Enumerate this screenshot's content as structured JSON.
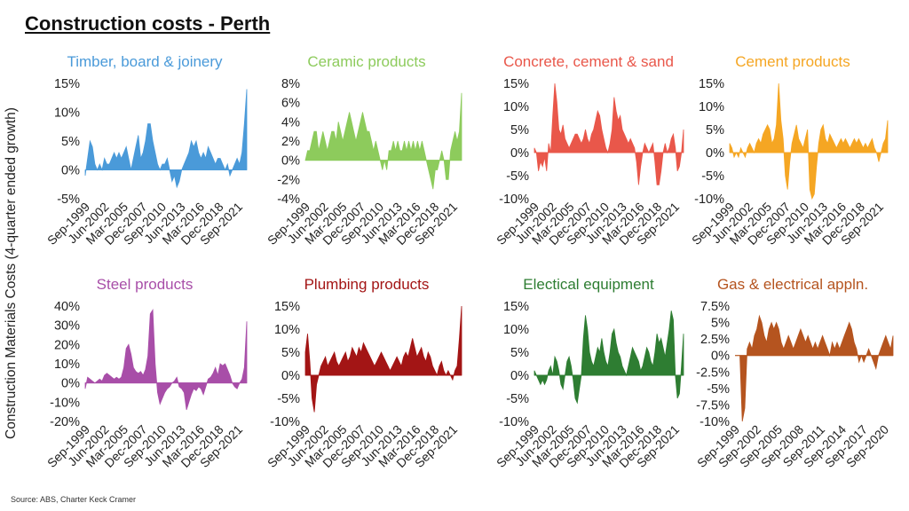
{
  "title": "Construction costs - Perth",
  "y_axis_title": "Construction Materials Costs (4-quarter ended growth)",
  "source": "Source: ABS, Charter Keck Cramer",
  "chart_data": [
    {
      "type": "area",
      "title": "Timber, board & joinery",
      "color": "#4a9ad9",
      "ylim": [
        -5,
        15
      ],
      "yticks": [
        15,
        10,
        5,
        0,
        -5
      ],
      "ytick_labels": [
        "15%",
        "10%",
        "5%",
        "0%",
        "-5%"
      ],
      "xlim": [
        1999.67,
        2022.0
      ],
      "xtick_labels": [
        "Sep-1999",
        "Jun-2002",
        "Mar-2005",
        "Dec-2007",
        "Sep-2010",
        "Jun-2013",
        "Mar-2016",
        "Dec-2018",
        "Sep-2021"
      ],
      "values": [
        -1,
        2,
        5,
        4,
        1,
        0,
        1,
        0,
        2,
        1,
        1,
        2,
        3,
        2,
        3,
        2,
        3,
        4,
        2,
        0,
        2,
        4,
        6,
        2,
        3,
        5,
        8,
        8,
        5,
        3,
        1,
        0,
        1,
        1,
        2,
        0,
        -2,
        -1,
        -3,
        -2,
        0,
        1,
        2,
        3,
        5,
        4,
        5,
        3,
        2,
        3,
        2,
        4,
        3,
        2,
        1,
        2,
        2,
        1,
        0,
        1,
        -1,
        0,
        1,
        2,
        1,
        3,
        8,
        14
      ]
    },
    {
      "type": "area",
      "title": "Ceramic products",
      "color": "#8dcb5c",
      "ylim": [
        -4,
        8
      ],
      "yticks": [
        8,
        6,
        4,
        2,
        0,
        -2,
        -4
      ],
      "ytick_labels": [
        "8%",
        "6%",
        "4%",
        "2%",
        "0%",
        "-2%",
        "-4%"
      ],
      "xlim": [
        1999.67,
        2022.0
      ],
      "xtick_labels": [
        "Sep-1999",
        "Jun-2002",
        "Mar-2005",
        "Dec-2007",
        "Sep-2010",
        "Jun-2013",
        "Mar-2016",
        "Dec-2018",
        "Sep-2021"
      ],
      "values": [
        0,
        1,
        1,
        2,
        3,
        3,
        1,
        2,
        3,
        2,
        1,
        2,
        3,
        3,
        2,
        4,
        3,
        2,
        3,
        4,
        5,
        4,
        3,
        2,
        3,
        4,
        5,
        4,
        3,
        3,
        2,
        1,
        2,
        1,
        0,
        -1,
        0,
        -1,
        1,
        1,
        2,
        1,
        2,
        1,
        1,
        2,
        1,
        2,
        1,
        2,
        1,
        2,
        1,
        2,
        1,
        0,
        -1,
        -2,
        -3,
        -1,
        -1,
        0,
        1,
        0,
        -2,
        -2,
        1,
        2,
        3,
        2,
        3,
        7
      ]
    },
    {
      "type": "area",
      "title": "Concrete, cement & sand",
      "color": "#e9574a",
      "ylim": [
        -10,
        15
      ],
      "yticks": [
        15,
        10,
        5,
        0,
        -5,
        -10
      ],
      "ytick_labels": [
        "15%",
        "10%",
        "5%",
        "0%",
        "-5%",
        "-10%"
      ],
      "xlim": [
        1999.67,
        2022.0
      ],
      "xtick_labels": [
        "Sep-1999",
        "Jun-2002",
        "Mar-2005",
        "Dec-2007",
        "Sep-2010",
        "Jun-2013",
        "Mar-2016",
        "Dec-2018",
        "Sep-2021"
      ],
      "values": [
        1,
        0,
        -4,
        -2,
        -3,
        -1,
        -4,
        2,
        0,
        8,
        15,
        11,
        5,
        4,
        6,
        3,
        2,
        1,
        2,
        3,
        4,
        4,
        3,
        2,
        3,
        5,
        3,
        2,
        4,
        5,
        7,
        9,
        8,
        5,
        3,
        1,
        0,
        2,
        5,
        12,
        9,
        7,
        8,
        5,
        4,
        3,
        2,
        3,
        2,
        1,
        -2,
        -7,
        -3,
        0,
        2,
        1,
        0,
        1,
        2,
        -2,
        -7,
        -7,
        -4,
        0,
        2,
        0,
        1,
        3,
        4,
        1,
        -4,
        -3,
        0,
        5
      ]
    },
    {
      "type": "area",
      "title": "Cement products",
      "color": "#f5a623",
      "ylim": [
        -10,
        15
      ],
      "yticks": [
        15,
        10,
        5,
        0,
        -5,
        -10
      ],
      "ytick_labels": [
        "15%",
        "10%",
        "5%",
        "0%",
        "-5%",
        "-10%"
      ],
      "xlim": [
        1999.67,
        2022.0
      ],
      "xtick_labels": [
        "Sep-1999",
        "Jun-2002",
        "Mar-2005",
        "Dec-2007",
        "Sep-2010",
        "Jun-2013",
        "Mar-2016",
        "Dec-2018",
        "Sep-2021"
      ],
      "values": [
        2,
        1,
        -1,
        0,
        -1,
        1,
        0,
        -1,
        1,
        2,
        1,
        0,
        2,
        3,
        2,
        4,
        5,
        6,
        5,
        2,
        3,
        6,
        15,
        7,
        3,
        -5,
        -8,
        -2,
        2,
        4,
        6,
        3,
        2,
        1,
        3,
        5,
        -8,
        -10,
        -9,
        -3,
        2,
        5,
        6,
        3,
        2,
        4,
        3,
        2,
        1,
        2,
        3,
        2,
        3,
        2,
        1,
        2,
        3,
        2,
        3,
        2,
        1,
        2,
        1,
        2,
        3,
        1,
        0,
        -2,
        0,
        2,
        3,
        7
      ]
    },
    {
      "type": "area",
      "title": "Steel products",
      "color": "#a84ea8",
      "ylim": [
        -20,
        40
      ],
      "yticks": [
        40,
        30,
        20,
        10,
        0,
        -10,
        -20
      ],
      "ytick_labels": [
        "40%",
        "30%",
        "20%",
        "10%",
        "0%",
        "-10%",
        "-20%"
      ],
      "xlim": [
        1999.67,
        2022.0
      ],
      "xtick_labels": [
        "Sep-1999",
        "Jun-2002",
        "Mar-2005",
        "Dec-2007",
        "Sep-2010",
        "Jun-2013",
        "Mar-2016",
        "Dec-2018",
        "Sep-2021"
      ],
      "values": [
        -3,
        3,
        2,
        1,
        0,
        1,
        2,
        1,
        4,
        5,
        4,
        3,
        2,
        3,
        2,
        3,
        8,
        18,
        20,
        15,
        8,
        6,
        5,
        6,
        4,
        7,
        14,
        36,
        38,
        10,
        -5,
        -11,
        -8,
        -5,
        -3,
        -2,
        0,
        1,
        3,
        -2,
        -3,
        -5,
        -14,
        -10,
        -6,
        -3,
        -4,
        -2,
        -3,
        -6,
        -2,
        2,
        3,
        5,
        8,
        4,
        10,
        9,
        10,
        7,
        4,
        0,
        -2,
        -3,
        0,
        2,
        8,
        32
      ]
    },
    {
      "type": "area",
      "title": "Plumbing products",
      "color": "#a31515",
      "ylim": [
        -10,
        15
      ],
      "yticks": [
        15,
        10,
        5,
        0,
        -5,
        -10
      ],
      "ytick_labels": [
        "15%",
        "10%",
        "5%",
        "0%",
        "-5%",
        "-10%"
      ],
      "xlim": [
        1999.67,
        2022.0
      ],
      "xtick_labels": [
        "Sep-1999",
        "Jun-2002",
        "Mar-2005",
        "Dec-2007",
        "Sep-2010",
        "Jun-2013",
        "Mar-2016",
        "Dec-2018",
        "Sep-2021"
      ],
      "values": [
        5,
        9,
        3,
        -5,
        -8,
        -2,
        0,
        2,
        3,
        4,
        2,
        3,
        4,
        5,
        3,
        2,
        3,
        4,
        5,
        3,
        4,
        6,
        5,
        4,
        6,
        5,
        7,
        6,
        5,
        4,
        3,
        2,
        3,
        4,
        5,
        4,
        3,
        2,
        1,
        2,
        3,
        4,
        3,
        2,
        4,
        5,
        4,
        6,
        8,
        6,
        4,
        5,
        6,
        4,
        3,
        5,
        4,
        2,
        1,
        0,
        2,
        3,
        1,
        0,
        1,
        0,
        -1,
        1,
        2,
        8,
        15
      ]
    },
    {
      "type": "area",
      "title": "Electical equipment",
      "color": "#2e7d32",
      "ylim": [
        -10,
        15
      ],
      "yticks": [
        15,
        10,
        5,
        0,
        -5,
        -10
      ],
      "ytick_labels": [
        "15%",
        "10%",
        "5%",
        "0%",
        "-5%",
        "-10%"
      ],
      "xlim": [
        1999.67,
        2022.0
      ],
      "xtick_labels": [
        "Sep-1999",
        "Jun-2002",
        "Mar-2005",
        "Dec-2007",
        "Sep-2010",
        "Jun-2013",
        "Mar-2016",
        "Dec-2018",
        "Sep-2021"
      ],
      "values": [
        1,
        0,
        -1,
        -2,
        -1,
        -2,
        -1,
        1,
        2,
        0,
        4,
        3,
        1,
        -2,
        -3,
        0,
        3,
        4,
        2,
        -1,
        -5,
        -6,
        -3,
        0,
        8,
        13,
        10,
        5,
        3,
        2,
        4,
        6,
        5,
        8,
        5,
        3,
        2,
        5,
        9,
        10,
        7,
        5,
        4,
        2,
        1,
        0,
        2,
        4,
        6,
        5,
        4,
        3,
        1,
        2,
        4,
        6,
        5,
        3,
        2,
        5,
        9,
        7,
        8,
        6,
        4,
        7,
        10,
        14,
        12,
        0,
        -5,
        -4,
        2,
        9
      ]
    },
    {
      "type": "area",
      "title": "Gas & electrical appln.",
      "color": "#b5541f",
      "ylim": [
        -10,
        7.5
      ],
      "yticks": [
        7.5,
        5,
        2.5,
        0,
        -2.5,
        -5,
        -7.5,
        -10
      ],
      "ytick_labels": [
        "7.5%",
        "5%",
        "2.5%",
        "0%",
        "-2.5%",
        "-5%",
        "-7.5%",
        "-10%"
      ],
      "xlim": [
        1999.67,
        2022.0
      ],
      "xtick_labels": [
        "Sep-1999",
        "Sep-2002",
        "Sep-2005",
        "Sep-2008",
        "Sep-2011",
        "Sep-2014",
        "Sep-2017",
        "Sep-2020"
      ],
      "values": [
        0,
        0,
        0,
        -10,
        -8,
        1,
        2,
        1,
        3,
        4,
        6,
        5,
        3,
        2,
        4,
        5,
        4,
        5,
        4,
        2,
        1,
        2,
        3,
        2,
        1,
        2,
        3,
        4,
        3,
        2,
        3,
        2,
        1,
        2,
        1,
        2,
        3,
        2,
        1,
        0,
        2,
        1,
        2,
        1,
        2,
        3,
        4,
        5,
        4,
        2,
        1,
        -1,
        0,
        -1,
        0,
        1,
        0,
        -1,
        -2,
        0,
        1,
        2,
        3,
        2,
        1,
        3
      ]
    }
  ]
}
